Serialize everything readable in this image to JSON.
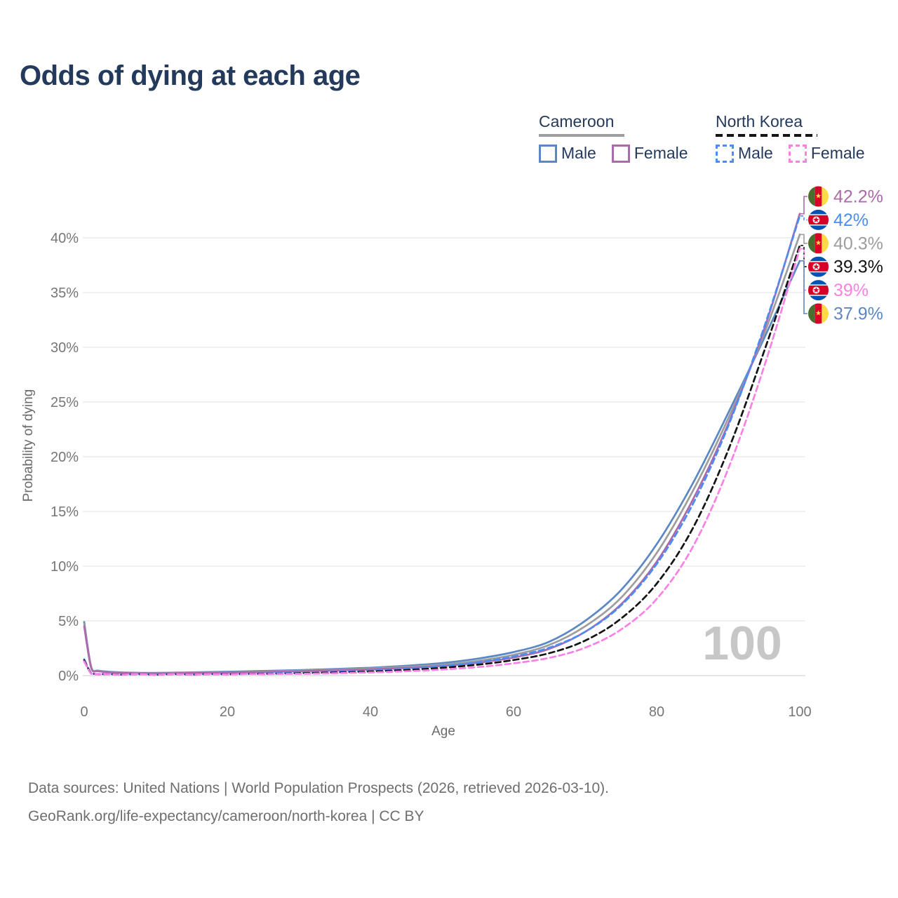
{
  "title": "Odds of dying at each age",
  "legend": {
    "groups": [
      {
        "name": "Cameroon",
        "style": "solid",
        "underline_color": "#9e9e9e",
        "items": [
          {
            "label": "Male",
            "color": "#5b87c5"
          },
          {
            "label": "Female",
            "color": "#ac69ab"
          }
        ]
      },
      {
        "name": "North Korea",
        "style": "dashed",
        "underline_color": "#141414",
        "items": [
          {
            "label": "Male",
            "color": "#4a8df5"
          },
          {
            "label": "Female",
            "color": "#fb80e5"
          }
        ]
      }
    ]
  },
  "chart_data": {
    "type": "line",
    "title": "Odds of dying at each age",
    "xlabel": "Age",
    "ylabel": "Probability of dying",
    "xlim": [
      0,
      100
    ],
    "ylim": [
      0,
      44
    ],
    "grid": "horizontal",
    "legend_position": "top-right",
    "watermark": "100",
    "x_tick_values": [
      0,
      20,
      40,
      60,
      80,
      100
    ],
    "x_tick_labels": [
      "0",
      "20",
      "40",
      "60",
      "80",
      "100"
    ],
    "y_tick_values": [
      0,
      5,
      10,
      15,
      20,
      25,
      30,
      35,
      40
    ],
    "y_tick_labels": [
      "0%",
      "5%",
      "10%",
      "15%",
      "20%",
      "25%",
      "30%",
      "35%",
      "40%"
    ],
    "ages": [
      0,
      1,
      2,
      5,
      10,
      15,
      20,
      25,
      30,
      35,
      40,
      45,
      50,
      55,
      60,
      65,
      70,
      75,
      80,
      85,
      90,
      95,
      100
    ],
    "series": [
      {
        "name": "Cameroon Male",
        "country": "Cameroon",
        "group": "Male",
        "color": "#5b87c5",
        "dash": false,
        "values": [
          4.9,
          0.75,
          0.45,
          0.3,
          0.25,
          0.3,
          0.35,
          0.42,
          0.5,
          0.6,
          0.72,
          0.9,
          1.15,
          1.55,
          2.15,
          3.1,
          5.0,
          7.8,
          12.0,
          17.5,
          24.0,
          30.8,
          37.9
        ]
      },
      {
        "name": "Cameroon",
        "country": "Cameroon",
        "group": "Both sexes",
        "color": "#9d9d9d",
        "dash": false,
        "values": [
          4.7,
          0.7,
          0.42,
          0.27,
          0.22,
          0.26,
          0.31,
          0.37,
          0.45,
          0.54,
          0.65,
          0.8,
          1.0,
          1.35,
          1.9,
          2.8,
          4.5,
          7.1,
          11.2,
          16.8,
          23.5,
          31.2,
          40.3
        ]
      },
      {
        "name": "Cameroon Female",
        "country": "Cameroon",
        "group": "Female",
        "color": "#ac69ab",
        "dash": false,
        "values": [
          4.5,
          0.65,
          0.4,
          0.25,
          0.2,
          0.23,
          0.28,
          0.33,
          0.4,
          0.47,
          0.57,
          0.7,
          0.88,
          1.18,
          1.65,
          2.45,
          4.0,
          6.5,
          10.4,
          16.0,
          23.0,
          31.6,
          42.2
        ]
      },
      {
        "name": "North Korea Male",
        "country": "North Korea",
        "group": "Male",
        "color": "#4a8df5",
        "dash": true,
        "values": [
          1.5,
          0.2,
          0.12,
          0.08,
          0.07,
          0.1,
          0.14,
          0.19,
          0.26,
          0.34,
          0.46,
          0.63,
          0.87,
          1.22,
          1.75,
          2.55,
          4.0,
          6.4,
          10.2,
          15.6,
          22.8,
          31.8,
          42.0
        ]
      },
      {
        "name": "North Korea",
        "country": "North Korea",
        "group": "Both sexes",
        "color": "#141414",
        "dash": true,
        "values": [
          1.4,
          0.18,
          0.11,
          0.07,
          0.06,
          0.08,
          0.11,
          0.15,
          0.21,
          0.28,
          0.37,
          0.51,
          0.71,
          1.0,
          1.42,
          2.05,
          3.2,
          5.2,
          8.4,
          13.4,
          20.6,
          29.6,
          39.3
        ]
      },
      {
        "name": "North Korea Female",
        "country": "North Korea",
        "group": "Female",
        "color": "#fb80e5",
        "dash": true,
        "values": [
          1.3,
          0.16,
          0.1,
          0.06,
          0.05,
          0.07,
          0.09,
          0.12,
          0.16,
          0.22,
          0.29,
          0.4,
          0.55,
          0.78,
          1.12,
          1.62,
          2.55,
          4.2,
          7.0,
          11.7,
          18.9,
          28.2,
          39.0
        ]
      }
    ],
    "end_labels": [
      {
        "text": "42.2%",
        "series": "Cameroon Female",
        "flag": "cameroon",
        "color": "#ac69ab"
      },
      {
        "text": "42%",
        "series": "North Korea Male",
        "flag": "north-korea",
        "color": "#4a8df5"
      },
      {
        "text": "40.3%",
        "series": "Cameroon",
        "flag": "cameroon",
        "color": "#9d9d9d"
      },
      {
        "text": "39.3%",
        "series": "North Korea",
        "flag": "north-korea",
        "color": "#141414"
      },
      {
        "text": "39%",
        "series": "North Korea Female",
        "flag": "north-korea",
        "color": "#fb80e5"
      },
      {
        "text": "37.9%",
        "series": "Cameroon Male",
        "flag": "cameroon",
        "color": "#5b87c5"
      }
    ]
  },
  "footer": {
    "line1": "Data sources: United Nations | World Population Prospects (2026, retrieved 2026-03-10).",
    "line2": "GeoRank.org/life-expectancy/cameroon/north-korea | CC BY"
  }
}
